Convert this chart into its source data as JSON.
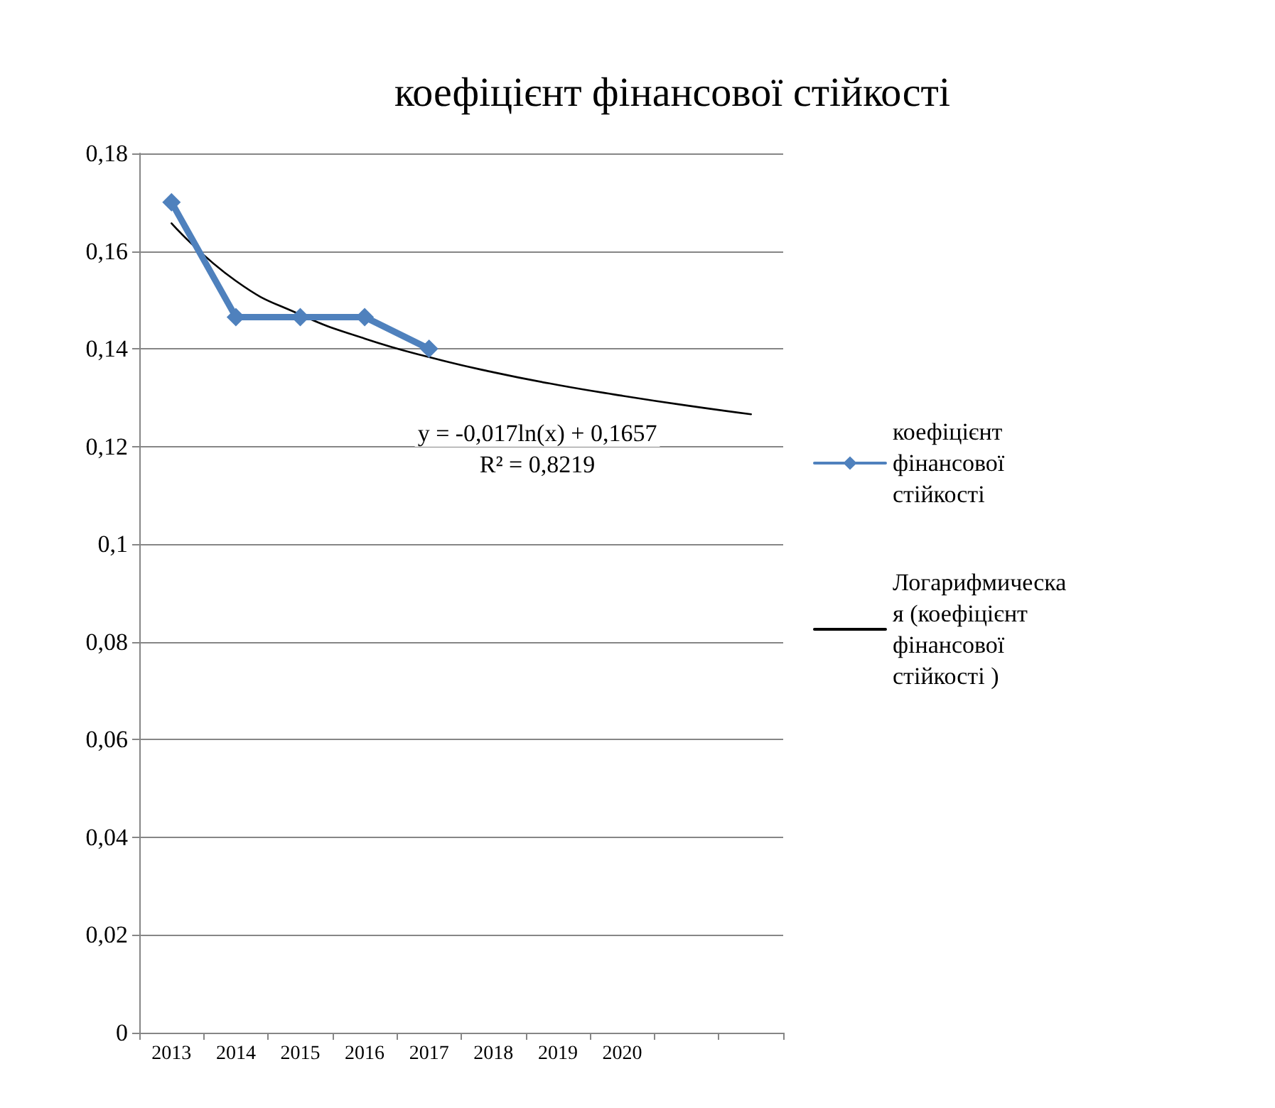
{
  "chart_data": {
    "type": "line",
    "title": "коефіцієнт фінансової стійкості",
    "categories": [
      "2013",
      "2014",
      "2015",
      "2016",
      "2017",
      "2018",
      "2019",
      "2020",
      null,
      null
    ],
    "series": [
      {
        "name": "коефіцієнт фінансової стійкості",
        "color": "#4f81bd",
        "values": [
          0.17,
          0.1465,
          0.1465,
          0.1465,
          0.14,
          null,
          null,
          null,
          null,
          null
        ],
        "marker": "diamond"
      },
      {
        "name": "Логарифмическая (коефіцієнт фінансової стійкості )",
        "color": "#000000",
        "values": [
          0.1657,
          0.1539,
          0.147,
          0.1421,
          0.1383,
          0.1352,
          0.1326,
          0.1304,
          0.1284,
          0.1266
        ],
        "marker": "none"
      }
    ],
    "ylim": [
      0,
      0.18
    ],
    "yticks": [
      0,
      {
        "value": 0.02,
        "label": "0,02"
      },
      {
        "value": 0.04,
        "label": "0,04"
      },
      {
        "value": 0.06,
        "label": "0,06"
      },
      {
        "value": 0.08,
        "label": "0,08"
      },
      {
        "value": 0.1,
        "label": "0,1"
      },
      {
        "value": 0.12,
        "label": "0,12"
      },
      {
        "value": 0.14,
        "label": "0,14"
      },
      {
        "value": 0.16,
        "label": "0,16"
      },
      {
        "value": 0.18,
        "label": "0,18"
      }
    ],
    "grid": "y",
    "legend": "right",
    "annotations": [
      "y = -0,017ln(x) + 0,1657",
      "R² = 0,8219"
    ]
  }
}
